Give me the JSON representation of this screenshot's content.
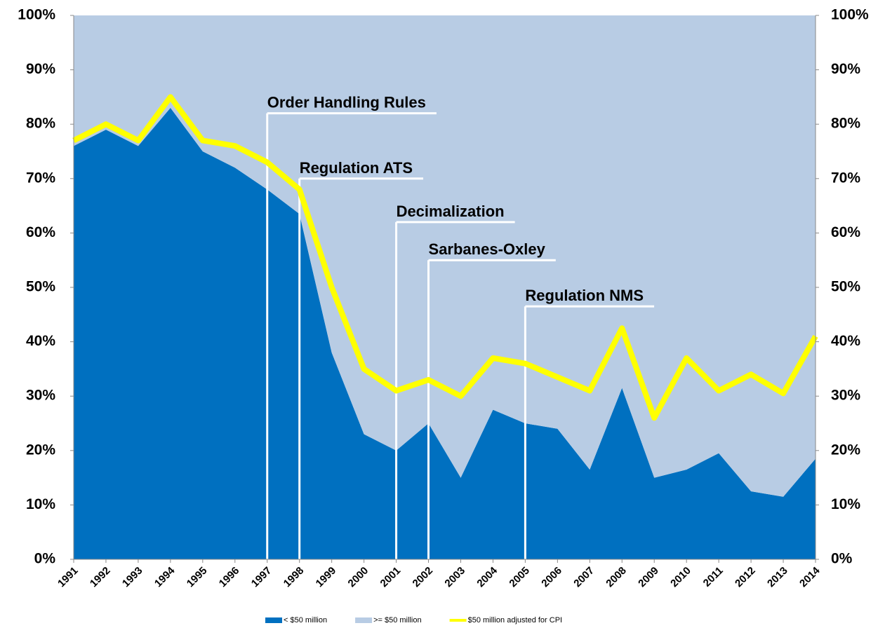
{
  "chart_data": {
    "type": "stacked-area-line",
    "categories": [
      "1991",
      "1992",
      "1993",
      "1994",
      "1995",
      "1996",
      "1997",
      "1998",
      "1999",
      "2000",
      "2001",
      "2002",
      "2003",
      "2004",
      "2005",
      "2006",
      "2007",
      "2008",
      "2009",
      "2010",
      "2011",
      "2012",
      "2013",
      "2014"
    ],
    "series": [
      {
        "name": "< $50 million",
        "color": "#0070c0",
        "kind": "area",
        "values": [
          76,
          79,
          76,
          83,
          75,
          72,
          68,
          63.5,
          38,
          23,
          20,
          25,
          15,
          27.5,
          25,
          24,
          16.5,
          31.5,
          15,
          16.5,
          19.5,
          12.5,
          11.5,
          18.5
        ]
      },
      {
        "name": ">= $50 million",
        "color": "#b8cce4",
        "kind": "area",
        "values": [
          24,
          21,
          24,
          17,
          25,
          28,
          32,
          36.5,
          62,
          77,
          80,
          75,
          85,
          72.5,
          75,
          76,
          83.5,
          68.5,
          85,
          83.5,
          80.5,
          87.5,
          88.5,
          81.5
        ]
      },
      {
        "name": "$50 million adjusted for CPI",
        "color": "#ffff00",
        "kind": "line",
        "values": [
          77,
          80,
          77,
          85,
          77,
          76,
          73,
          68,
          50,
          35,
          31,
          33,
          30,
          37,
          36,
          33.5,
          31,
          42.5,
          26,
          37,
          31,
          34,
          30.5,
          41
        ]
      }
    ],
    "annotations": [
      {
        "label": "Order Handling Rules",
        "x": "1997",
        "y": 82
      },
      {
        "label": "Regulation ATS",
        "x": "1998",
        "y": 70
      },
      {
        "label": "Decimalization",
        "x": "2001",
        "y": 62
      },
      {
        "label": "Sarbanes-Oxley",
        "x": "2002",
        "y": 55
      },
      {
        "label": "Regulation NMS",
        "x": "2005",
        "y": 46.5
      }
    ],
    "ylim": [
      0,
      100
    ],
    "yticks": [
      {
        "value": 0,
        "label": "0%"
      },
      {
        "value": 10,
        "label": "10%"
      },
      {
        "value": 20,
        "label": "20%"
      },
      {
        "value": 30,
        "label": "30%"
      },
      {
        "value": 40,
        "label": "40%"
      },
      {
        "value": 50,
        "label": "50%"
      },
      {
        "value": 60,
        "label": "60%"
      },
      {
        "value": 70,
        "label": "70%"
      },
      {
        "value": 80,
        "label": "80%"
      },
      {
        "value": 90,
        "label": "90%"
      },
      {
        "value": 100,
        "label": "100%"
      }
    ],
    "y2lim": [
      0,
      100
    ],
    "y2ticks": [
      {
        "value": 0,
        "label": "0%"
      },
      {
        "value": 10,
        "label": "10%"
      },
      {
        "value": 20,
        "label": "20%"
      },
      {
        "value": 30,
        "label": "30%"
      },
      {
        "value": 40,
        "label": "40%"
      },
      {
        "value": 50,
        "label": "50%"
      },
      {
        "value": 60,
        "label": "60%"
      },
      {
        "value": 70,
        "label": "70%"
      },
      {
        "value": 80,
        "label": "80%"
      },
      {
        "value": 90,
        "label": "90%"
      },
      {
        "value": 100,
        "label": "100%"
      }
    ],
    "legend": "bottom"
  }
}
